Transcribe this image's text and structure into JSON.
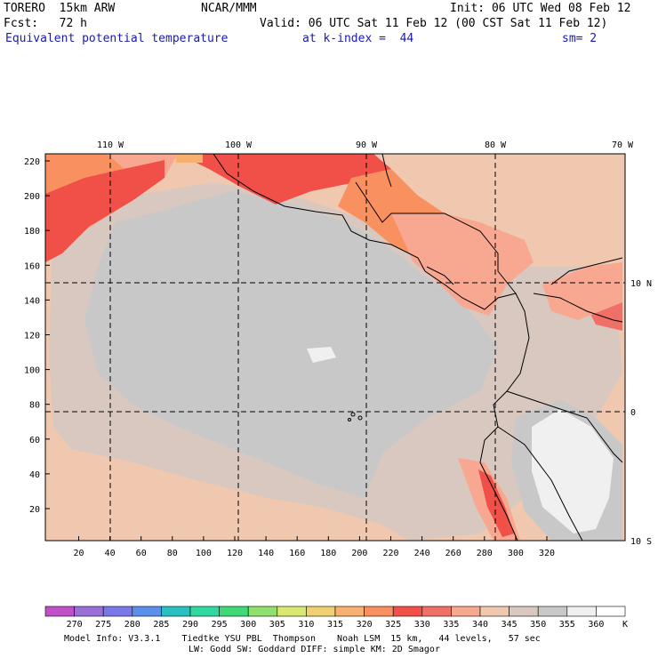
{
  "header": {
    "model": "TORERO  15km ARW",
    "org": "NCAR/MMM",
    "init": "Init: 06 UTC Wed 08 Feb 12",
    "fcst": "Fcst:   72 h",
    "valid": "Valid: 06 UTC Sat 11 Feb 12 (00 CST Sat 11 Feb 12)",
    "field": "Equivalent potential temperature",
    "level": "at k-index =  44",
    "smooth": "sm= 2"
  },
  "map": {
    "lon_labels": [
      "110 W",
      "100 W",
      "90 W",
      "80 W",
      "70 W"
    ],
    "lat_labels": [
      "10 N",
      "0",
      "10 S"
    ],
    "x_ticks": [
      "20",
      "40",
      "60",
      "80",
      "100",
      "120",
      "140",
      "160",
      "180",
      "200",
      "220",
      "240",
      "260",
      "280",
      "300",
      "320"
    ],
    "y_ticks": [
      "220",
      "200",
      "180",
      "160",
      "140",
      "120",
      "100",
      "80",
      "60",
      "40",
      "20"
    ]
  },
  "colorbar": {
    "unit": "K",
    "labels": [
      "270",
      "275",
      "280",
      "285",
      "290",
      "295",
      "300",
      "305",
      "310",
      "315",
      "320",
      "325",
      "330",
      "335",
      "340",
      "345",
      "350",
      "355",
      "360"
    ],
    "colors": [
      "#c050c8",
      "#9a70d8",
      "#7878e8",
      "#5a90ea",
      "#28c0c0",
      "#30d8a0",
      "#40d878",
      "#90e070",
      "#d8e870",
      "#f0d070",
      "#f8b070",
      "#f89060",
      "#f05048",
      "#f07068",
      "#f8a890",
      "#f0c8b0",
      "#d8c8c0",
      "#c8c8c8",
      "#f0f0f0",
      "#ffffff"
    ]
  },
  "footer": {
    "line1": "Model Info: V3.3.1    Tiedtke YSU PBL  Thompson    Noah LSM  15 km,   44 levels,   57 sec",
    "line2": "LW: Godd SW: Goddard DIFF: simple KM: 2D Smagor"
  }
}
